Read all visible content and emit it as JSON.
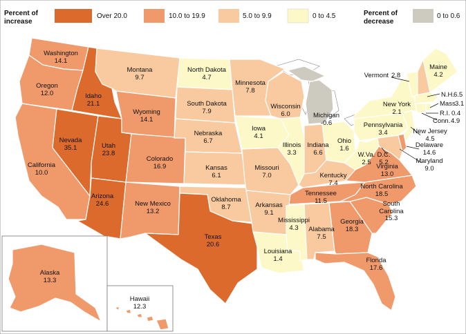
{
  "legend": {
    "increase_title_line1": "Percent of",
    "increase_title_line2": "increase",
    "decrease_title_line1": "Percent of",
    "decrease_title_line2": "decrease",
    "classes": [
      {
        "label": "Over 20.0",
        "color": "#dc6a2c"
      },
      {
        "label": "10.0 to 19.9",
        "color": "#f09a6c"
      },
      {
        "label": "5.0 to 9.9",
        "color": "#f9caa0"
      },
      {
        "label": "0 to 4.5",
        "color": "#fdf8c8"
      },
      {
        "label": "0 to 0.6",
        "color": "#cdcbc0"
      }
    ]
  },
  "states": [
    {
      "name": "Washington",
      "value": "14.1"
    },
    {
      "name": "Oregon",
      "value": "12.0"
    },
    {
      "name": "California",
      "value": "10.0"
    },
    {
      "name": "Idaho",
      "value": "21.1"
    },
    {
      "name": "Nevada",
      "value": "35.1"
    },
    {
      "name": "Utah",
      "value": "23.8"
    },
    {
      "name": "Arizona",
      "value": "24.6"
    },
    {
      "name": "Montana",
      "value": "9.7"
    },
    {
      "name": "Wyoming",
      "value": "14.1"
    },
    {
      "name": "Colorado",
      "value": "16.9"
    },
    {
      "name": "New Mexico",
      "value": "13.2"
    },
    {
      "name": "North Dakota",
      "value": "4.7"
    },
    {
      "name": "South Dakota",
      "value": "7.9"
    },
    {
      "name": "Nebraska",
      "value": "6.7"
    },
    {
      "name": "Kansas",
      "value": "6.1"
    },
    {
      "name": "Oklahoma",
      "value": "8.7"
    },
    {
      "name": "Texas",
      "value": "20.6"
    },
    {
      "name": "Minnesota",
      "value": "7.8"
    },
    {
      "name": "Iowa",
      "value": "4.1"
    },
    {
      "name": "Missouri",
      "value": "7.0"
    },
    {
      "name": "Arkansas",
      "value": "9.1"
    },
    {
      "name": "Louisiana",
      "value": "1.4"
    },
    {
      "name": "Wisconsin",
      "value": "6.0"
    },
    {
      "name": "Illinois",
      "value": "3.3"
    },
    {
      "name": "Michigan",
      "value": "-0.6"
    },
    {
      "name": "Indiana",
      "value": "6.6"
    },
    {
      "name": "Ohio",
      "value": "1.6"
    },
    {
      "name": "Kentucky",
      "value": "7.4"
    },
    {
      "name": "Tennessee",
      "value": "11.5"
    },
    {
      "name": "Mississippi",
      "value": "4.3"
    },
    {
      "name": "Alabama",
      "value": "7.5"
    },
    {
      "name": "Georgia",
      "value": "18.3"
    },
    {
      "name": "Florida",
      "value": "17.6"
    },
    {
      "name": "South Carolina",
      "value": "15.3"
    },
    {
      "name": "North Carolina",
      "value": "18.5"
    },
    {
      "name": "Virginia",
      "value": "13.0"
    },
    {
      "name": "W.Va.",
      "value": "2.5"
    },
    {
      "name": "D.C.",
      "value": "5.2"
    },
    {
      "name": "Maryland",
      "value": "9.0"
    },
    {
      "name": "Delaware",
      "value": "14.6"
    },
    {
      "name": "New Jersey",
      "value": "4.5"
    },
    {
      "name": "Pennsylvania",
      "value": "3.4"
    },
    {
      "name": "New York",
      "value": "2.1"
    },
    {
      "name": "Vermont",
      "value": "2.8"
    },
    {
      "name": "N.H.",
      "value": "6.5"
    },
    {
      "name": "Maine",
      "value": "4.2"
    },
    {
      "name": "Mass.",
      "value": "3.1"
    },
    {
      "name": "R.I.",
      "value": "0.4"
    },
    {
      "name": "Conn.",
      "value": "4.9"
    },
    {
      "name": "Alaska",
      "value": "13.3"
    },
    {
      "name": "Hawaii",
      "value": "12.3"
    }
  ]
}
